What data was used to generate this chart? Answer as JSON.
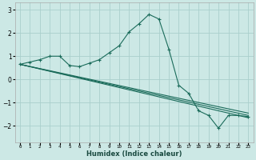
{
  "title": "",
  "xlabel": "Humidex (Indice chaleur)",
  "ylabel": "",
  "background_color": "#cce8e5",
  "grid_color": "#aacfcc",
  "line_color": "#1a6b5a",
  "xlim": [
    -0.5,
    23.5
  ],
  "ylim": [
    -2.7,
    3.3
  ],
  "xticks": [
    0,
    1,
    2,
    3,
    4,
    5,
    6,
    7,
    8,
    9,
    10,
    11,
    12,
    13,
    14,
    15,
    16,
    17,
    18,
    19,
    20,
    21,
    22,
    23
  ],
  "yticks": [
    -2,
    -1,
    0,
    1,
    2,
    3
  ],
  "line1_x": [
    0,
    1,
    2,
    3,
    4,
    5,
    6,
    7,
    8,
    9,
    10,
    11,
    12,
    13,
    14,
    15,
    16,
    17,
    18,
    19,
    20,
    21,
    22,
    23
  ],
  "line1_y": [
    0.65,
    0.75,
    0.85,
    1.0,
    1.0,
    0.6,
    0.55,
    0.7,
    0.85,
    1.15,
    1.45,
    2.05,
    2.4,
    2.8,
    2.6,
    1.3,
    -0.25,
    -0.6,
    -1.35,
    -1.55,
    -2.1,
    -1.55,
    -1.55,
    -1.6
  ],
  "line2_x": [
    0,
    23
  ],
  "line2_y": [
    0.65,
    -1.65
  ],
  "line3_x": [
    0,
    23
  ],
  "line3_y": [
    0.65,
    -1.55
  ],
  "line4_x": [
    0,
    23
  ],
  "line4_y": [
    0.65,
    -1.45
  ]
}
